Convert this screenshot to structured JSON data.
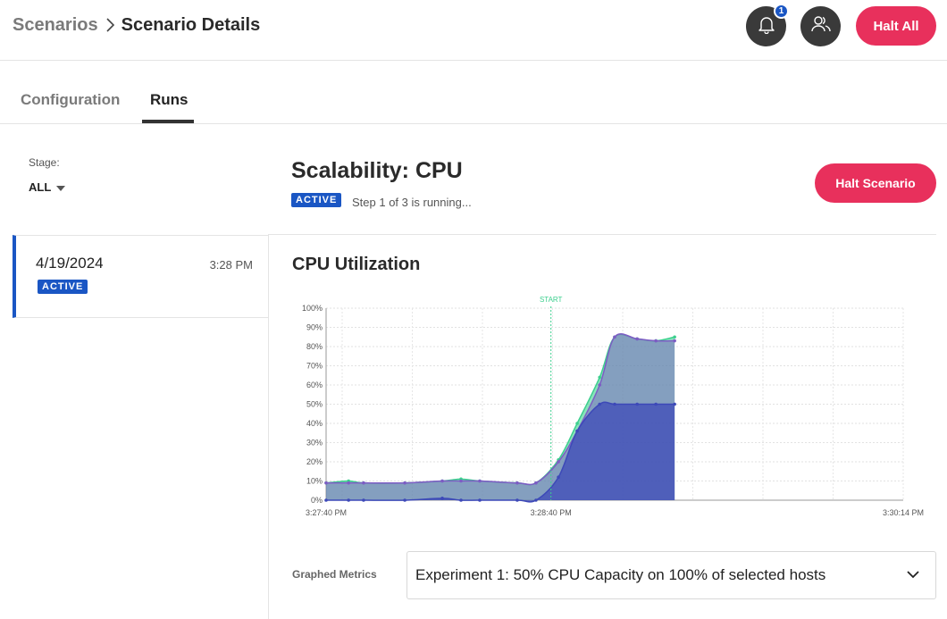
{
  "breadcrumb": {
    "parent": "Scenarios",
    "current": "Scenario Details"
  },
  "header": {
    "notification_count": "1",
    "halt_all_label": "Halt All"
  },
  "tabs": [
    {
      "label": "Configuration"
    },
    {
      "label": "Runs",
      "active": true
    }
  ],
  "stage": {
    "label": "Stage:",
    "value": "ALL"
  },
  "runs": [
    {
      "date": "4/19/2024",
      "time": "3:28 PM",
      "status": "ACTIVE"
    }
  ],
  "scenario": {
    "title": "Scalability: CPU",
    "status": "ACTIVE",
    "progress_text": "Step 1 of 3 is running...",
    "halt_label": "Halt Scenario"
  },
  "chart_title": "CPU Utilization",
  "metrics": {
    "label": "Graphed Metrics",
    "selected": "Experiment 1: 50% CPU Capacity on 100% of selected hosts"
  },
  "colors": {
    "accent": "#e8305c",
    "badge": "#1a56c4",
    "series_green": "#3ccf8e",
    "series_purple": "#7d5cc4",
    "series_blue": "#3d49b8"
  },
  "chart_data": {
    "type": "area",
    "title": "CPU Utilization",
    "xlabel": "",
    "ylabel": "",
    "x_ticks": [
      "3:27:40 PM",
      "3:28:40 PM",
      "3:30:14 PM"
    ],
    "y_ticks": [
      "0%",
      "10%",
      "20%",
      "30%",
      "40%",
      "50%",
      "60%",
      "70%",
      "80%",
      "90%",
      "100%"
    ],
    "ylim": [
      0,
      100
    ],
    "x_range_seconds": [
      0,
      154
    ],
    "grid": true,
    "annotation": {
      "label": "START",
      "x_seconds": 60
    },
    "series": [
      {
        "x": [
          0,
          6,
          10,
          21,
          31,
          36,
          41,
          51,
          56,
          62,
          67,
          73,
          77,
          83,
          88,
          93
        ],
        "values": [
          9,
          10,
          9,
          9,
          10,
          11,
          10,
          9,
          9,
          21,
          40,
          64,
          85,
          84,
          83,
          85
        ]
      },
      {
        "x": [
          0,
          6,
          10,
          21,
          31,
          36,
          41,
          51,
          56,
          62,
          67,
          73,
          77,
          83,
          88,
          93
        ],
        "values": [
          9,
          9,
          9,
          9,
          10,
          10,
          10,
          9,
          9,
          20,
          36,
          60,
          85,
          84,
          83,
          83
        ]
      },
      {
        "x": [
          0,
          6,
          10,
          21,
          31,
          36,
          41,
          51,
          56,
          62,
          67,
          73,
          77,
          83,
          88,
          93
        ],
        "values": [
          0,
          0,
          0,
          0,
          1,
          0,
          0,
          0,
          0,
          12,
          36,
          50,
          50,
          50,
          50,
          50
        ]
      }
    ]
  }
}
